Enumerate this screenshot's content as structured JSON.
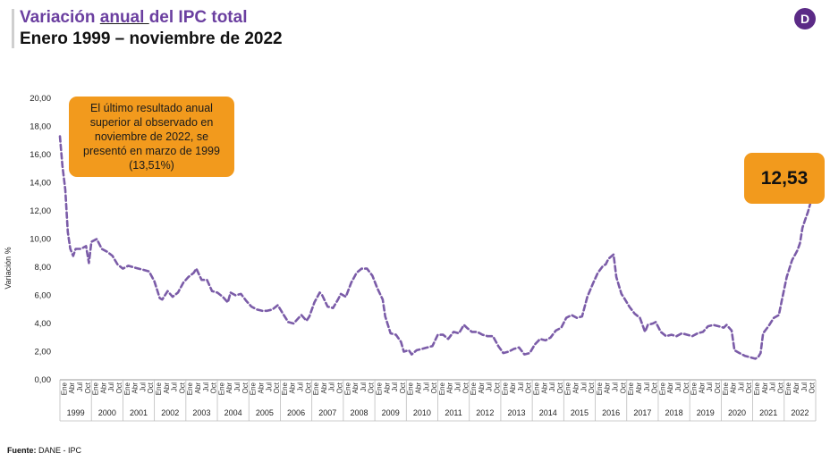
{
  "header": {
    "title_before": "Variación ",
    "title_underlined": "anual ",
    "title_after": "del IPC total",
    "subtitle": "Enero 1999 – noviembre de 2022"
  },
  "logo": {
    "letter": "D",
    "color": "#5b2a86"
  },
  "source": {
    "label": "Fuente:",
    "text": " DANE - IPC"
  },
  "callout": {
    "text": "El último resultado anual superior al observado en noviembre de 2022, se presentó en marzo de 1999 (13,51%)"
  },
  "value_box": {
    "text": "12,53"
  },
  "chart_data": {
    "type": "line",
    "ylabel": "Variación %",
    "ylim": [
      0,
      20
    ],
    "yticks": [
      "0,00",
      "2,00",
      "4,00",
      "6,00",
      "8,00",
      "10,00",
      "12,00",
      "14,00",
      "16,00",
      "18,00",
      "20,00"
    ],
    "month_labels": [
      "Ene",
      "Abr",
      "Jul",
      "Oct"
    ],
    "years": [
      "1999",
      "2000",
      "2001",
      "2002",
      "2003",
      "2004",
      "2005",
      "2006",
      "2007",
      "2008",
      "2009",
      "2010",
      "2011",
      "2012",
      "2013",
      "2014",
      "2015",
      "2016",
      "2017",
      "2018",
      "2019",
      "2020",
      "2021",
      "2022"
    ],
    "line_color": "#7b5ca8",
    "grid": false,
    "series": [
      {
        "points": [
          [
            1999.0,
            17.3
          ],
          [
            1999.08,
            15.2
          ],
          [
            1999.17,
            13.5
          ],
          [
            1999.25,
            10.5
          ],
          [
            1999.33,
            9.3
          ],
          [
            1999.42,
            8.8
          ],
          [
            1999.5,
            9.3
          ],
          [
            1999.67,
            9.3
          ],
          [
            1999.83,
            9.5
          ],
          [
            1999.92,
            8.3
          ],
          [
            2000.0,
            9.8
          ],
          [
            2000.17,
            10.0
          ],
          [
            2000.33,
            9.3
          ],
          [
            2000.5,
            9.1
          ],
          [
            2000.67,
            8.8
          ],
          [
            2000.83,
            8.2
          ],
          [
            2001.0,
            7.9
          ],
          [
            2001.17,
            8.1
          ],
          [
            2001.33,
            8.0
          ],
          [
            2001.5,
            7.9
          ],
          [
            2001.67,
            7.8
          ],
          [
            2001.83,
            7.7
          ],
          [
            2002.0,
            7.0
          ],
          [
            2002.17,
            5.8
          ],
          [
            2002.25,
            5.7
          ],
          [
            2002.42,
            6.3
          ],
          [
            2002.58,
            5.9
          ],
          [
            2002.75,
            6.2
          ],
          [
            2002.92,
            6.9
          ],
          [
            2003.08,
            7.3
          ],
          [
            2003.25,
            7.6
          ],
          [
            2003.33,
            7.9
          ],
          [
            2003.5,
            7.1
          ],
          [
            2003.67,
            7.1
          ],
          [
            2003.83,
            6.3
          ],
          [
            2004.0,
            6.2
          ],
          [
            2004.17,
            5.9
          ],
          [
            2004.33,
            5.5
          ],
          [
            2004.42,
            6.2
          ],
          [
            2004.58,
            6.0
          ],
          [
            2004.75,
            6.1
          ],
          [
            2004.92,
            5.6
          ],
          [
            2005.08,
            5.2
          ],
          [
            2005.25,
            5.0
          ],
          [
            2005.42,
            4.9
          ],
          [
            2005.58,
            4.9
          ],
          [
            2005.75,
            5.0
          ],
          [
            2005.92,
            5.3
          ],
          [
            2006.08,
            4.7
          ],
          [
            2006.25,
            4.1
          ],
          [
            2006.42,
            4.0
          ],
          [
            2006.58,
            4.4
          ],
          [
            2006.67,
            4.6
          ],
          [
            2006.83,
            4.2
          ],
          [
            2006.92,
            4.5
          ],
          [
            2007.08,
            5.5
          ],
          [
            2007.25,
            6.2
          ],
          [
            2007.33,
            6.0
          ],
          [
            2007.5,
            5.2
          ],
          [
            2007.67,
            5.1
          ],
          [
            2007.83,
            5.7
          ],
          [
            2007.92,
            6.1
          ],
          [
            2008.08,
            5.9
          ],
          [
            2008.25,
            6.9
          ],
          [
            2008.42,
            7.6
          ],
          [
            2008.58,
            7.9
          ],
          [
            2008.75,
            7.9
          ],
          [
            2008.92,
            7.4
          ],
          [
            2009.08,
            6.5
          ],
          [
            2009.25,
            5.7
          ],
          [
            2009.33,
            4.5
          ],
          [
            2009.5,
            3.3
          ],
          [
            2009.67,
            3.2
          ],
          [
            2009.83,
            2.7
          ],
          [
            2009.92,
            2.0
          ],
          [
            2010.08,
            2.1
          ],
          [
            2010.17,
            1.8
          ],
          [
            2010.33,
            2.1
          ],
          [
            2010.5,
            2.2
          ],
          [
            2010.67,
            2.3
          ],
          [
            2010.83,
            2.4
          ],
          [
            2011.0,
            3.2
          ],
          [
            2011.17,
            3.2
          ],
          [
            2011.33,
            2.9
          ],
          [
            2011.5,
            3.4
          ],
          [
            2011.67,
            3.3
          ],
          [
            2011.83,
            3.9
          ],
          [
            2011.92,
            3.7
          ],
          [
            2012.08,
            3.4
          ],
          [
            2012.25,
            3.4
          ],
          [
            2012.42,
            3.2
          ],
          [
            2012.58,
            3.1
          ],
          [
            2012.75,
            3.1
          ],
          [
            2012.92,
            2.4
          ],
          [
            2013.08,
            1.9
          ],
          [
            2013.25,
            2.0
          ],
          [
            2013.42,
            2.2
          ],
          [
            2013.58,
            2.3
          ],
          [
            2013.75,
            1.8
          ],
          [
            2013.92,
            1.9
          ],
          [
            2014.08,
            2.5
          ],
          [
            2014.25,
            2.9
          ],
          [
            2014.42,
            2.8
          ],
          [
            2014.58,
            3.0
          ],
          [
            2014.75,
            3.5
          ],
          [
            2014.92,
            3.7
          ],
          [
            2015.08,
            4.4
          ],
          [
            2015.25,
            4.6
          ],
          [
            2015.42,
            4.4
          ],
          [
            2015.58,
            4.5
          ],
          [
            2015.75,
            5.9
          ],
          [
            2015.92,
            6.8
          ],
          [
            2016.08,
            7.6
          ],
          [
            2016.25,
            8.1
          ],
          [
            2016.33,
            8.2
          ],
          [
            2016.42,
            8.6
          ],
          [
            2016.58,
            8.9
          ],
          [
            2016.67,
            7.3
          ],
          [
            2016.83,
            6.1
          ],
          [
            2016.92,
            5.8
          ],
          [
            2017.08,
            5.2
          ],
          [
            2017.25,
            4.7
          ],
          [
            2017.42,
            4.4
          ],
          [
            2017.58,
            3.4
          ],
          [
            2017.67,
            3.9
          ],
          [
            2017.83,
            4.0
          ],
          [
            2017.92,
            4.1
          ],
          [
            2018.08,
            3.4
          ],
          [
            2018.25,
            3.1
          ],
          [
            2018.42,
            3.2
          ],
          [
            2018.58,
            3.1
          ],
          [
            2018.75,
            3.3
          ],
          [
            2018.92,
            3.2
          ],
          [
            2019.08,
            3.1
          ],
          [
            2019.25,
            3.3
          ],
          [
            2019.42,
            3.4
          ],
          [
            2019.58,
            3.8
          ],
          [
            2019.75,
            3.9
          ],
          [
            2019.92,
            3.8
          ],
          [
            2020.08,
            3.7
          ],
          [
            2020.17,
            3.9
          ],
          [
            2020.33,
            3.5
          ],
          [
            2020.42,
            2.1
          ],
          [
            2020.58,
            1.9
          ],
          [
            2020.75,
            1.7
          ],
          [
            2020.92,
            1.6
          ],
          [
            2021.08,
            1.5
          ],
          [
            2021.17,
            1.6
          ],
          [
            2021.25,
            1.9
          ],
          [
            2021.33,
            3.3
          ],
          [
            2021.5,
            3.8
          ],
          [
            2021.67,
            4.4
          ],
          [
            2021.83,
            4.6
          ],
          [
            2021.92,
            5.6
          ],
          [
            2022.08,
            7.3
          ],
          [
            2022.25,
            8.5
          ],
          [
            2022.42,
            9.2
          ],
          [
            2022.5,
            9.7
          ],
          [
            2022.58,
            10.8
          ],
          [
            2022.67,
            11.4
          ],
          [
            2022.75,
            11.9
          ],
          [
            2022.83,
            12.53
          ]
        ]
      }
    ]
  }
}
